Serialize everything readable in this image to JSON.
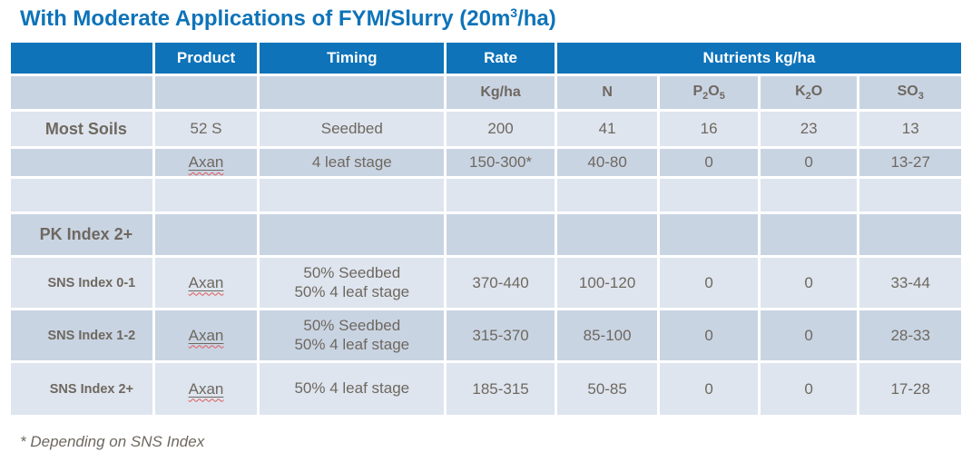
{
  "colors": {
    "header_blue": "#0e73b9",
    "row_dark": "#c9d4e3",
    "row_light": "#dee5ef",
    "body_text": "#6e685f",
    "title_text": "#0e73b9",
    "header_text": "#ffffff",
    "squiggle_red": "#e05a5a"
  },
  "title": {
    "pre": "With Moderate Applications of FYM/Slurry (20m",
    "sup": "3",
    "post": "/ha)"
  },
  "table": {
    "header": {
      "label": "",
      "product": "Product",
      "timing": "Timing",
      "rate": "Rate",
      "nutrients": "Nutrients kg/ha",
      "units": {
        "rate_unit": "Kg/ha",
        "n": "N",
        "p2o5": {
          "t1": "P",
          "s1": "2",
          "t2": "O",
          "s2": "5"
        },
        "k2o": {
          "t1": "K",
          "s1": "2",
          "t2": "O"
        },
        "so3": {
          "t1": "SO",
          "s1": "3"
        }
      }
    },
    "rows": [
      {
        "label": "Most Soils",
        "product": "52 S",
        "timing": "Seedbed",
        "rate": "200",
        "n": "41",
        "p2o5": "16",
        "k2o": "23",
        "so3": "13"
      },
      {
        "label": "",
        "product": "Axan",
        "timing": "4 leaf stage",
        "rate": "150-300*",
        "n": "40-80",
        "p2o5": "0",
        "k2o": "0",
        "so3": "13-27"
      },
      {
        "label": "",
        "product": "",
        "timing": "",
        "rate": "",
        "n": "",
        "p2o5": "",
        "k2o": "",
        "so3": ""
      },
      {
        "label": "PK Index 2+",
        "product": "",
        "timing": "",
        "rate": "",
        "n": "",
        "p2o5": "",
        "k2o": "",
        "so3": ""
      },
      {
        "label": "SNS Index 0-1",
        "product": "Axan",
        "timing": "50% Seedbed\n50% 4 leaf stage",
        "rate": "370-440",
        "n": "100-120",
        "p2o5": "0",
        "k2o": "0",
        "so3": "33-44"
      },
      {
        "label": "SNS Index 1-2",
        "product": "Axan",
        "timing": "50% Seedbed\n50% 4 leaf stage",
        "rate": "315-370",
        "n": "85-100",
        "p2o5": "0",
        "k2o": "0",
        "so3": "28-33"
      },
      {
        "label": "SNS Index 2+",
        "product": "Axan",
        "timing": "50% 4 leaf stage",
        "rate": "185-315",
        "n": "50-85",
        "p2o5": "0",
        "k2o": "0",
        "so3": "17-28"
      }
    ]
  },
  "footnote": "* Depending on SNS Index"
}
